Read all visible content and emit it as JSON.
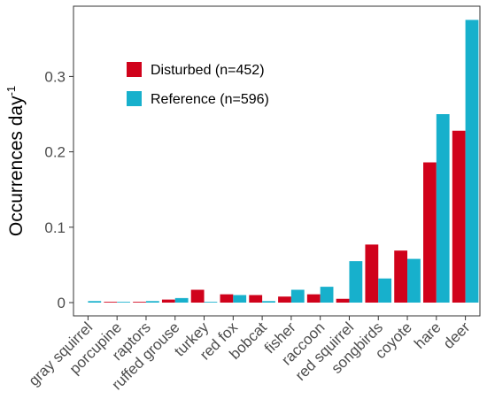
{
  "chart_data": {
    "type": "bar",
    "ylabel": "Occurrences day",
    "ylabel_superscript": "-1",
    "ylim": [
      0,
      0.39
    ],
    "yticks": [
      0,
      0.1,
      0.2,
      0.3
    ],
    "ytick_labels": [
      "0",
      "0.1",
      "0.2",
      "0.3"
    ],
    "grid": false,
    "legend_position": "top-left inside",
    "categories": [
      "gray squirrel",
      "porcupine",
      "raptors",
      "ruffed grouse",
      "turkey",
      "red fox",
      "bobcat",
      "fisher",
      "raccoon",
      "red squirrel",
      "songbirds",
      "coyote",
      "hare",
      "deer"
    ],
    "series": [
      {
        "name": "Disturbed (n=452)",
        "color": "#d0021b",
        "values": [
          0.0,
          0.001,
          0.001,
          0.004,
          0.017,
          0.011,
          0.01,
          0.008,
          0.011,
          0.005,
          0.077,
          0.069,
          0.186,
          0.228
        ]
      },
      {
        "name": "Reference (n=596)",
        "color": "#17b0cc",
        "values": [
          0.002,
          0.001,
          0.002,
          0.006,
          0.001,
          0.01,
          0.002,
          0.017,
          0.021,
          0.055,
          0.032,
          0.058,
          0.25,
          0.375
        ]
      }
    ]
  }
}
